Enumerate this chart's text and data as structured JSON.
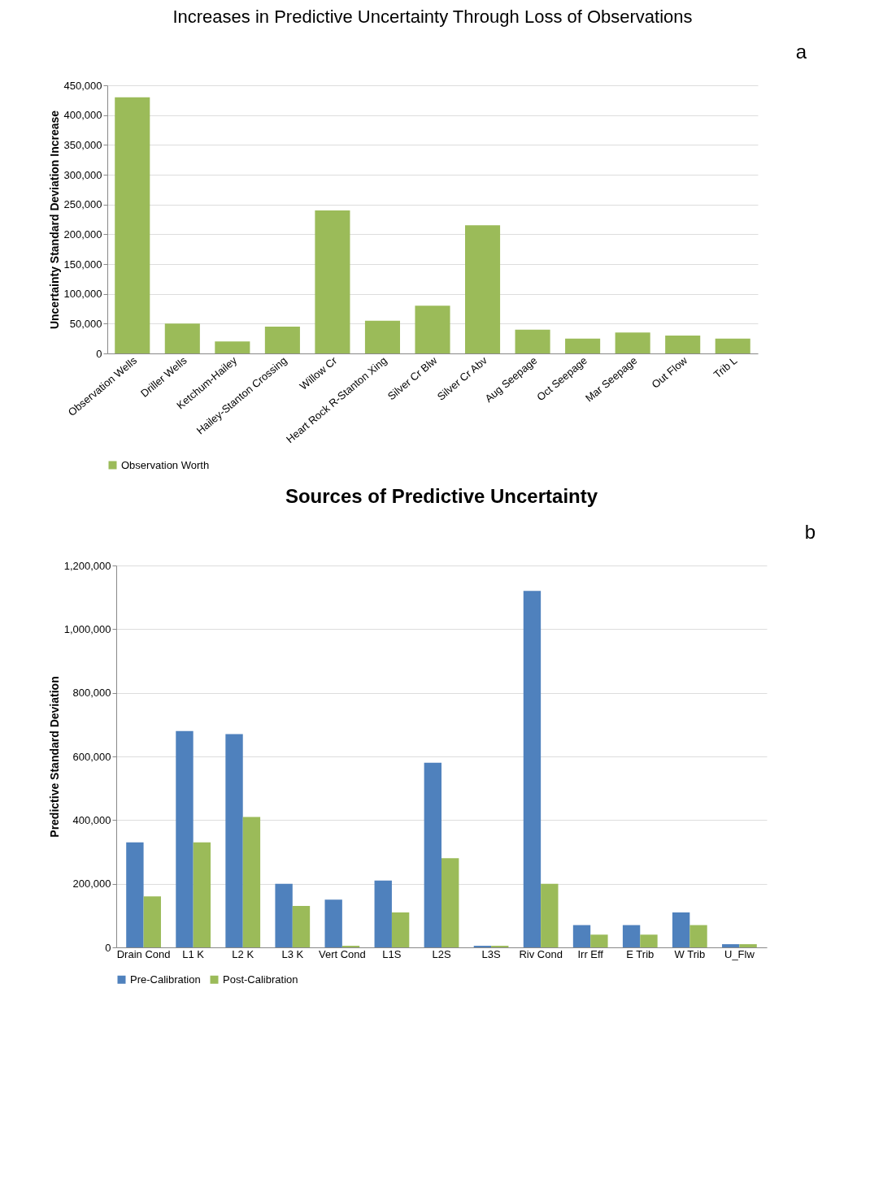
{
  "chart_data": [
    {
      "type": "bar",
      "title": "Increases in Predictive Uncertainty Through Loss of Observations",
      "ylabel": "Uncertainty  Standard Deviation Increase",
      "annotations": [
        "a"
      ],
      "categories": [
        "Observation Wells",
        "Driller Wells",
        "Ketchum-Hailey",
        "Hailey-Stanton Crossing",
        "Willow Cr",
        "Heart Rock R-Stanton Xing",
        "Silver Cr Blw",
        "Silver Cr Abv",
        "Aug Seepage",
        "Oct Seepage",
        "Mar Seepage",
        "Out Flow",
        "Trib L"
      ],
      "series": [
        {
          "name": "Observation Worth",
          "color": "#9bbb59",
          "values": [
            430000,
            50000,
            20000,
            45000,
            240000,
            55000,
            80000,
            215000,
            40000,
            25000,
            35000,
            30000,
            25000
          ]
        }
      ],
      "ylim": [
        0,
        450000
      ],
      "yticks": [
        0,
        {
          "value": 50000,
          "label": "50,000"
        },
        {
          "value": 100000,
          "label": "100,000"
        },
        {
          "value": 150000,
          "label": "150,000"
        },
        {
          "value": 200000,
          "label": "200,000"
        },
        {
          "value": 250000,
          "label": "250,000"
        },
        {
          "value": 300000,
          "label": "300,000"
        },
        {
          "value": 350000,
          "label": "350,000"
        },
        {
          "value": 400000,
          "label": "400,000"
        },
        {
          "value": 450000,
          "label": "450,000"
        }
      ],
      "grid": "y",
      "legend": "bottom"
    },
    {
      "type": "bar",
      "title": "Sources of Predictive Uncertainty",
      "ylabel": "Predictive  Standard Deviation",
      "annotations": [
        "b"
      ],
      "categories": [
        "Drain Cond",
        "L1 K",
        "L2 K",
        "L3 K",
        "Vert Cond",
        "L1S",
        "L2S",
        "L3S",
        "Riv Cond",
        "Irr Eff",
        "E Trib",
        "W Trib",
        "U_Flw"
      ],
      "series": [
        {
          "name": "Pre-Calibration",
          "color": "#4f81bd",
          "values": [
            330000,
            680000,
            670000,
            200000,
            150000,
            210000,
            580000,
            5000,
            1120000,
            70000,
            70000,
            110000,
            10000
          ]
        },
        {
          "name": "Post-Calibration",
          "color": "#9bbb59",
          "values": [
            160000,
            330000,
            410000,
            130000,
            5000,
            110000,
            280000,
            5000,
            200000,
            40000,
            40000,
            70000,
            10000
          ]
        }
      ],
      "ylim": [
        0,
        1200000
      ],
      "yticks": [
        0,
        {
          "value": 200000,
          "label": "200,000"
        },
        {
          "value": 400000,
          "label": "400,000"
        },
        {
          "value": 600000,
          "label": "600,000"
        },
        {
          "value": 800000,
          "label": "800,000"
        },
        {
          "value": 1000000,
          "label": "1,000,000"
        },
        {
          "value": 1200000,
          "label": "1,200,000"
        }
      ],
      "grid": "y",
      "legend": "bottom"
    }
  ]
}
